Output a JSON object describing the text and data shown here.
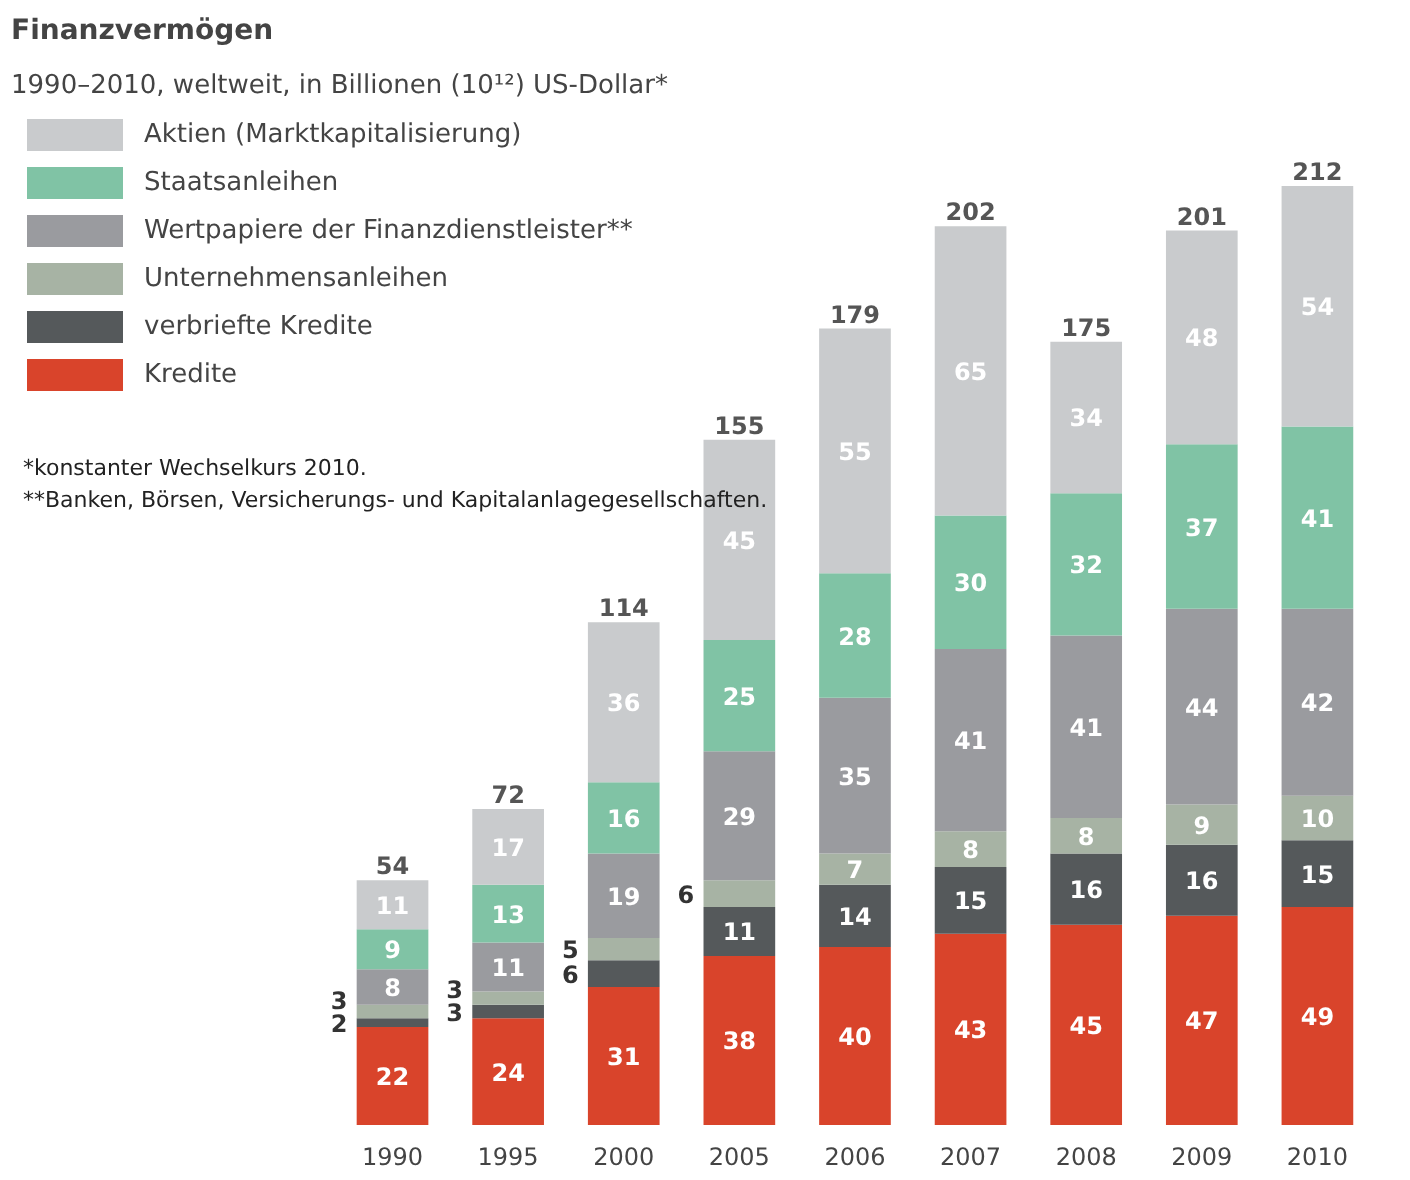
{
  "chart_data": {
    "type": "bar",
    "stacked": true,
    "title": "Finanzvermögen",
    "subtitle": "1990–2010, weltweit, in Billionen (10¹²) US-Dollar*",
    "categories": [
      "1990",
      "1995",
      "2000",
      "2005",
      "2006",
      "2007",
      "2008",
      "2009",
      "2010"
    ],
    "series": [
      {
        "name": "Kredite",
        "color": "#d9442b",
        "values": [
          22,
          24,
          31,
          38,
          40,
          43,
          45,
          47,
          49
        ]
      },
      {
        "name": "verbriefte Kredite",
        "color": "#55595b",
        "values": [
          2,
          3,
          6,
          11,
          14,
          15,
          16,
          16,
          15
        ]
      },
      {
        "name": "Unternehmensanleihen",
        "color": "#a7b3a4",
        "values": [
          3,
          3,
          5,
          6,
          7,
          8,
          8,
          9,
          10
        ]
      },
      {
        "name": "Wertpapiere der Finanzdienstleister**",
        "color": "#9a9b9f",
        "values": [
          8,
          11,
          19,
          29,
          35,
          41,
          41,
          44,
          42
        ]
      },
      {
        "name": "Staatsanleihen",
        "color": "#80c3a5",
        "values": [
          9,
          13,
          16,
          25,
          28,
          30,
          32,
          37,
          41
        ]
      },
      {
        "name": "Aktien (Marktkapitalisierung)",
        "color": "#c9cbcd",
        "values": [
          11,
          17,
          36,
          45,
          55,
          65,
          34,
          48,
          54
        ]
      }
    ],
    "totals": [
      "54",
      "72",
      "114",
      "155",
      "179",
      "202",
      "175",
      "201",
      "212"
    ],
    "data_labels": true,
    "legend": "top left",
    "grid": false,
    "annotations": [
      "*konstanter Wechselkurs 2010.",
      "**Banken, Börsen, Versicherungs- und Kapitalanlagegesellschaften."
    ]
  }
}
